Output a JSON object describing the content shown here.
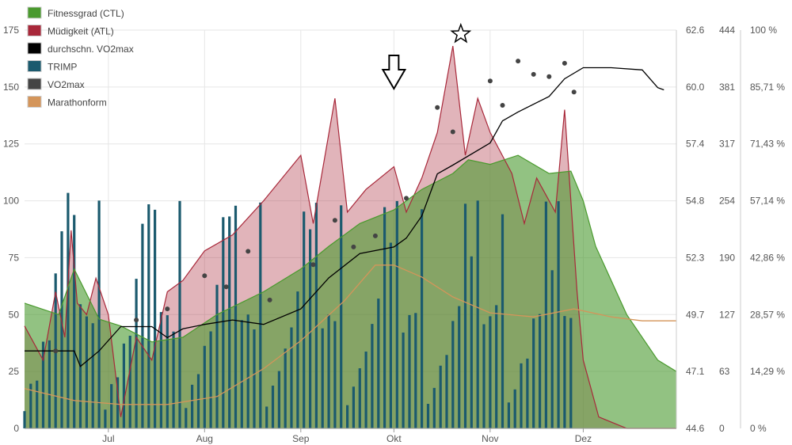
{
  "chart_data": {
    "type": "area",
    "grid": true,
    "legend_position": "top-left",
    "x_axis": {
      "type": "date",
      "range": [
        "2023-06-04",
        "2023-12-31"
      ],
      "ticks": [
        {
          "label": "Jul",
          "date": "2023-07-01"
        },
        {
          "label": "Aug",
          "date": "2023-08-01"
        },
        {
          "label": "Sep",
          "date": "2023-09-01"
        },
        {
          "label": "Okt",
          "date": "2023-10-01"
        },
        {
          "label": "Nov",
          "date": "2023-11-01"
        },
        {
          "label": "Dez",
          "date": "2023-12-01"
        }
      ]
    },
    "y_axes": [
      {
        "id": "load",
        "range": [
          0,
          175
        ],
        "ticks": [
          "0",
          "25",
          "50",
          "75",
          "100",
          "125",
          "150",
          "175"
        ]
      },
      {
        "id": "vo2",
        "range": [
          44.6,
          62.6
        ],
        "ticks": [
          "44.6",
          "47.1",
          "49.7",
          "52.3",
          "54.8",
          "57.4",
          "60.0",
          "62.6"
        ]
      },
      {
        "id": "trimp",
        "range": [
          0,
          444
        ],
        "ticks": [
          "0",
          "63",
          "127",
          "190",
          "254",
          "317",
          "381",
          "444"
        ]
      },
      {
        "id": "form",
        "range": [
          0,
          100
        ],
        "ticks": [
          "0 %",
          "14,29 %",
          "28,57 %",
          "42,86 %",
          "57,14 %",
          "71,43 %",
          "85,71 %",
          "100 %"
        ]
      }
    ],
    "series": [
      {
        "name": "Fitnessgrad (CTL)",
        "axis": "load",
        "color": "#4a9a2e",
        "x": [
          "2023-06-04",
          "2023-06-15",
          "2023-06-20",
          "2023-06-28",
          "2023-07-05",
          "2023-07-15",
          "2023-07-25",
          "2023-08-05",
          "2023-08-20",
          "2023-09-01",
          "2023-09-10",
          "2023-09-20",
          "2023-10-01",
          "2023-10-10",
          "2023-10-20",
          "2023-10-25",
          "2023-11-01",
          "2023-11-10",
          "2023-11-20",
          "2023-11-27",
          "2023-12-01",
          "2023-12-05",
          "2023-12-15",
          "2023-12-25",
          "2023-12-31"
        ],
        "values": [
          55,
          50,
          70,
          48,
          45,
          38,
          40,
          50,
          60,
          70,
          80,
          90,
          96,
          105,
          112,
          118,
          116,
          120,
          112,
          113,
          100,
          80,
          50,
          30,
          25
        ]
      },
      {
        "name": "Müdigkeit (ATL)",
        "axis": "load",
        "color": "#a8283a",
        "x": [
          "2023-06-04",
          "2023-06-10",
          "2023-06-14",
          "2023-06-17",
          "2023-06-19",
          "2023-06-21",
          "2023-06-24",
          "2023-06-27",
          "2023-07-01",
          "2023-07-05",
          "2023-07-10",
          "2023-07-15",
          "2023-07-20",
          "2023-07-25",
          "2023-08-01",
          "2023-08-10",
          "2023-08-20",
          "2023-09-01",
          "2023-09-05",
          "2023-09-12",
          "2023-09-16",
          "2023-09-22",
          "2023-10-01",
          "2023-10-05",
          "2023-10-10",
          "2023-10-15",
          "2023-10-20",
          "2023-10-24",
          "2023-10-28",
          "2023-11-01",
          "2023-11-08",
          "2023-11-12",
          "2023-11-16",
          "2023-11-22",
          "2023-11-25",
          "2023-11-27",
          "2023-11-29",
          "2023-12-01",
          "2023-12-06",
          "2023-12-15",
          "2023-12-31"
        ],
        "values": [
          45,
          30,
          60,
          40,
          87,
          55,
          50,
          66,
          50,
          5,
          40,
          30,
          60,
          65,
          78,
          85,
          100,
          120,
          90,
          145,
          95,
          105,
          115,
          95,
          110,
          130,
          168,
          120,
          145,
          130,
          112,
          90,
          110,
          95,
          140,
          100,
          60,
          30,
          5,
          0,
          0
        ]
      },
      {
        "name": "durchschn. VO2max",
        "axis": "vo2",
        "color": "#000000",
        "x": [
          "2023-06-04",
          "2023-06-20",
          "2023-06-22",
          "2023-06-28",
          "2023-07-05",
          "2023-07-15",
          "2023-07-20",
          "2023-07-25",
          "2023-08-01",
          "2023-08-10",
          "2023-08-20",
          "2023-09-01",
          "2023-09-10",
          "2023-09-20",
          "2023-10-01",
          "2023-10-05",
          "2023-10-10",
          "2023-10-15",
          "2023-10-20",
          "2023-11-01",
          "2023-11-05",
          "2023-11-10",
          "2023-11-20",
          "2023-11-25",
          "2023-12-01",
          "2023-12-10",
          "2023-12-20",
          "2023-12-25",
          "2023-12-27"
        ],
        "values": [
          48.1,
          48.1,
          47.4,
          48.1,
          49.2,
          49.2,
          48.7,
          49.1,
          49.3,
          49.5,
          49.3,
          50.0,
          51.4,
          52.5,
          52.8,
          53.2,
          54.2,
          56.1,
          56.5,
          57.5,
          58.5,
          58.9,
          59.6,
          60.4,
          60.9,
          60.9,
          60.8,
          60.0,
          59.9
        ]
      },
      {
        "name": "TRIMP",
        "axis": "trimp",
        "color": "#1b5a6e",
        "note": "daily bars",
        "x_range": [
          "2023-06-04",
          "2023-11-27"
        ],
        "values_sample": [
          35,
          50,
          80,
          100,
          127,
          190,
          254,
          317,
          254,
          190,
          127,
          190,
          254
        ]
      },
      {
        "name": "VO2max",
        "axis": "vo2",
        "color": "#444444",
        "x": [
          "2023-06-14",
          "2023-07-10",
          "2023-07-20",
          "2023-08-01",
          "2023-08-08",
          "2023-08-15",
          "2023-08-22",
          "2023-09-05",
          "2023-09-12",
          "2023-09-18",
          "2023-09-25",
          "2023-10-05",
          "2023-10-15",
          "2023-10-20",
          "2023-11-01",
          "2023-11-05",
          "2023-11-10",
          "2023-11-15",
          "2023-11-20",
          "2023-11-25",
          "2023-11-28"
        ],
        "values": [
          48.1,
          49.5,
          50.0,
          51.5,
          51.0,
          52.6,
          50.4,
          52.0,
          54.0,
          52.8,
          53.3,
          55.0,
          59.1,
          58.0,
          60.3,
          59.2,
          61.2,
          60.6,
          60.5,
          61.1,
          59.8
        ]
      },
      {
        "name": "Marathonform",
        "axis": "form",
        "color": "#d4955a",
        "x": [
          "2023-06-04",
          "2023-06-20",
          "2023-07-05",
          "2023-07-20",
          "2023-08-05",
          "2023-08-20",
          "2023-09-01",
          "2023-09-15",
          "2023-09-25",
          "2023-10-01",
          "2023-10-10",
          "2023-10-20",
          "2023-11-01",
          "2023-11-15",
          "2023-11-28",
          "2023-12-10",
          "2023-12-20",
          "2023-12-31"
        ],
        "values": [
          10,
          7,
          6,
          6,
          8,
          15,
          22,
          32,
          41,
          41,
          38,
          33,
          29,
          28,
          30,
          28,
          27,
          27
        ]
      }
    ],
    "annotations": [
      {
        "type": "arrow-down",
        "date": "2023-10-01"
      },
      {
        "type": "star",
        "date": "2023-10-20"
      }
    ]
  }
}
